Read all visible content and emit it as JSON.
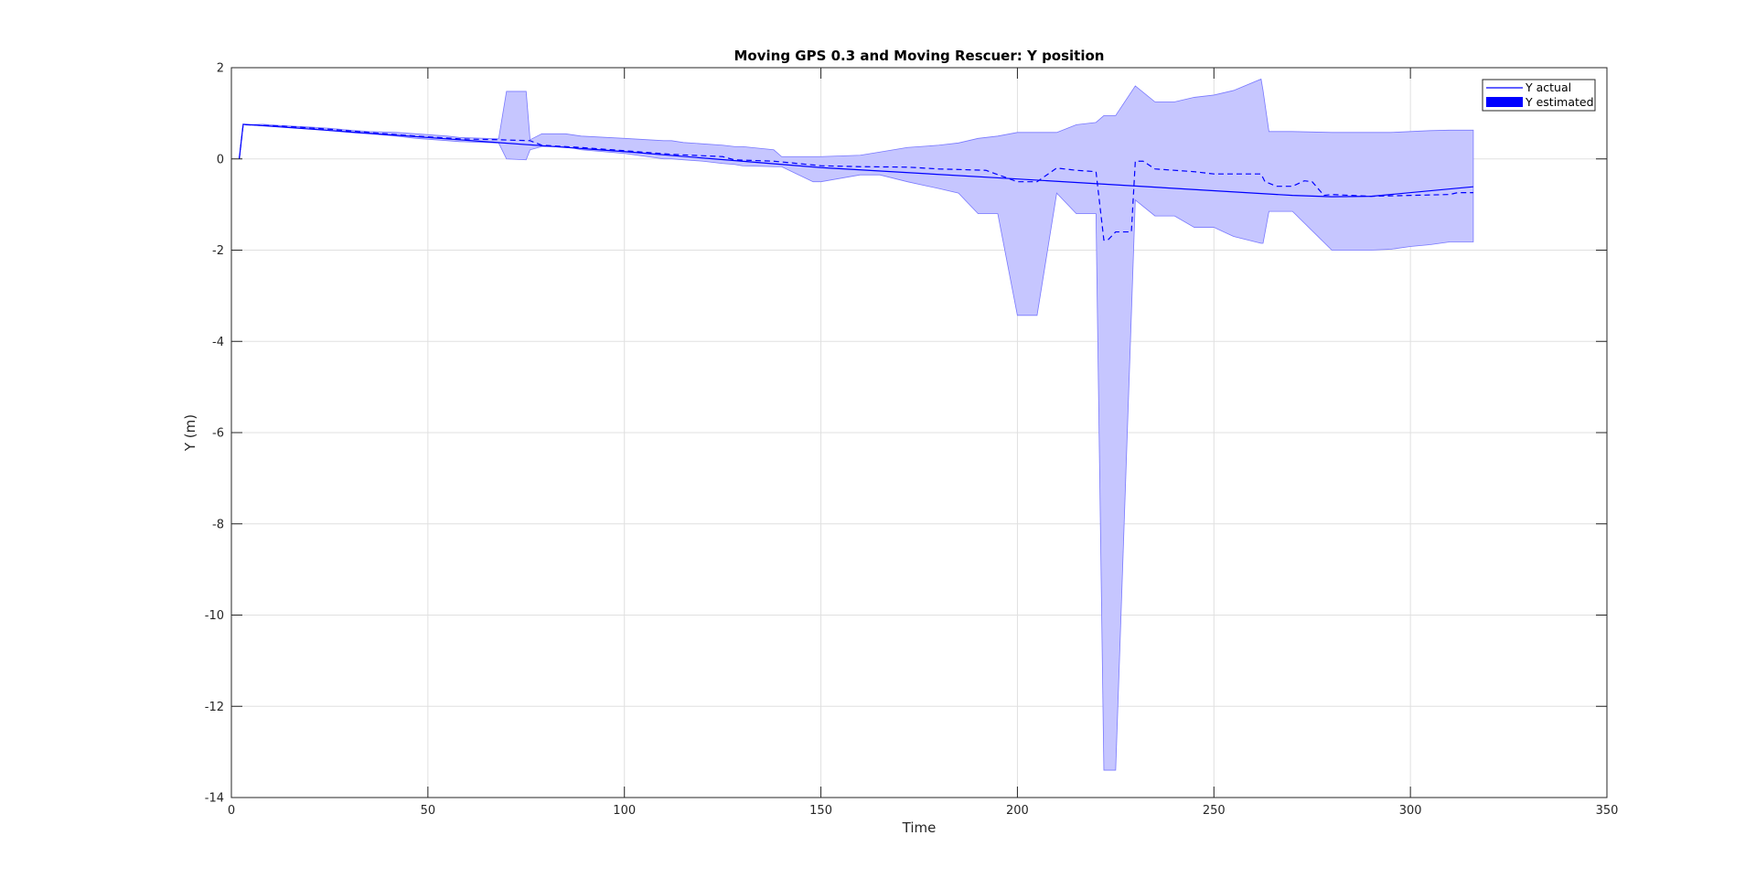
{
  "chart_data": {
    "type": "line",
    "title": "Moving GPS 0.3 and Moving Rescuer: Y position",
    "xlabel": "Time",
    "ylabel": "Y (m)",
    "xlim": [
      0,
      350
    ],
    "ylim": [
      -14,
      2
    ],
    "xticks": [
      0,
      50,
      100,
      150,
      200,
      250,
      300,
      350
    ],
    "yticks": [
      2,
      0,
      -2,
      -4,
      -6,
      -8,
      -10,
      -12,
      -14
    ],
    "grid": true,
    "legend": {
      "placement": "top-right",
      "entries": [
        "Y actual",
        "Y estimated"
      ]
    },
    "colors": {
      "line": "#0000ff",
      "band": "#c6c6ff",
      "band_edge": "#7878ff",
      "grid": "#e0e0e0"
    },
    "series": [
      {
        "name": "Y actual",
        "style": "solid",
        "x": [
          2,
          3,
          100,
          150,
          200,
          270,
          280,
          290,
          316
        ],
        "y": [
          0,
          0.76,
          0.16,
          -0.19,
          -0.44,
          -0.8,
          -0.83,
          -0.82,
          -0.61
        ]
      },
      {
        "name": "Y estimated",
        "style": "band",
        "x": [
          3,
          8,
          13,
          20,
          25,
          30,
          35,
          42,
          47,
          55,
          58,
          68,
          70,
          75,
          76,
          79,
          85,
          89,
          100,
          110,
          112,
          115,
          120,
          125,
          128,
          130,
          138,
          140,
          148,
          150,
          160,
          165,
          172,
          180,
          185,
          190,
          195,
          200,
          205,
          210,
          215,
          220,
          222,
          225,
          230,
          235,
          240,
          245,
          250,
          255,
          262,
          262.5,
          264,
          270,
          280,
          290,
          295,
          300,
          305,
          310,
          316
        ],
        "upper": [
          0.75,
          0.76,
          0.73,
          0.7,
          0.67,
          0.63,
          0.6,
          0.58,
          0.55,
          0.5,
          0.47,
          0.44,
          1.48,
          1.48,
          0.42,
          0.55,
          0.55,
          0.5,
          0.45,
          0.4,
          0.4,
          0.36,
          0.33,
          0.3,
          0.27,
          0.27,
          0.2,
          0.05,
          0.05,
          0.05,
          0.08,
          0.15,
          0.25,
          0.3,
          0.35,
          0.45,
          0.5,
          0.58,
          0.58,
          0.58,
          0.75,
          0.8,
          0.95,
          0.95,
          1.6,
          1.25,
          1.25,
          1.35,
          1.4,
          1.5,
          1.75,
          1.5,
          0.6,
          0.6,
          0.58,
          0.58,
          0.58,
          0.6,
          0.62,
          0.63,
          0.63
        ],
        "lower": [
          0.75,
          0.73,
          0.72,
          0.68,
          0.62,
          0.58,
          0.55,
          0.5,
          0.45,
          0.4,
          0.38,
          0.35,
          0.0,
          -0.02,
          0.2,
          0.27,
          0.27,
          0.2,
          0.12,
          0.0,
          0.0,
          -0.02,
          -0.05,
          -0.1,
          -0.12,
          -0.15,
          -0.17,
          -0.17,
          -0.5,
          -0.5,
          -0.35,
          -0.35,
          -0.5,
          -0.65,
          -0.75,
          -1.2,
          -1.2,
          -3.43,
          -3.43,
          -0.75,
          -1.2,
          -1.2,
          -13.4,
          -13.4,
          -0.9,
          -1.25,
          -1.25,
          -1.5,
          -1.5,
          -1.7,
          -1.85,
          -1.85,
          -1.15,
          -1.15,
          -2.0,
          -2.0,
          -1.98,
          -1.92,
          -1.88,
          -1.82,
          -1.82
        ]
      },
      {
        "name": "",
        "style": "dashed",
        "x": [
          2,
          3,
          13,
          25,
          35,
          47,
          58,
          68,
          76,
          79,
          89,
          100,
          112,
          125,
          128,
          138,
          150,
          160,
          172,
          180,
          192,
          200,
          205,
          210,
          215,
          220,
          222,
          223,
          225,
          226,
          229,
          230,
          232,
          235,
          245,
          250,
          262,
          263,
          266,
          270,
          273,
          275,
          278,
          280,
          285,
          290,
          300,
          310,
          312,
          316
        ],
        "y": [
          0,
          0.75,
          0.72,
          0.65,
          0.58,
          0.5,
          0.44,
          0.42,
          0.4,
          0.3,
          0.25,
          0.18,
          0.1,
          0.05,
          -0.02,
          -0.05,
          -0.15,
          -0.17,
          -0.18,
          -0.22,
          -0.25,
          -0.5,
          -0.5,
          -0.2,
          -0.25,
          -0.28,
          -1.78,
          -1.78,
          -1.6,
          -1.6,
          -1.6,
          -0.05,
          -0.05,
          -0.22,
          -0.28,
          -0.33,
          -0.33,
          -0.5,
          -0.6,
          -0.6,
          -0.48,
          -0.5,
          -0.8,
          -0.78,
          -0.8,
          -0.82,
          -0.8,
          -0.78,
          -0.74,
          -0.74
        ]
      }
    ]
  }
}
